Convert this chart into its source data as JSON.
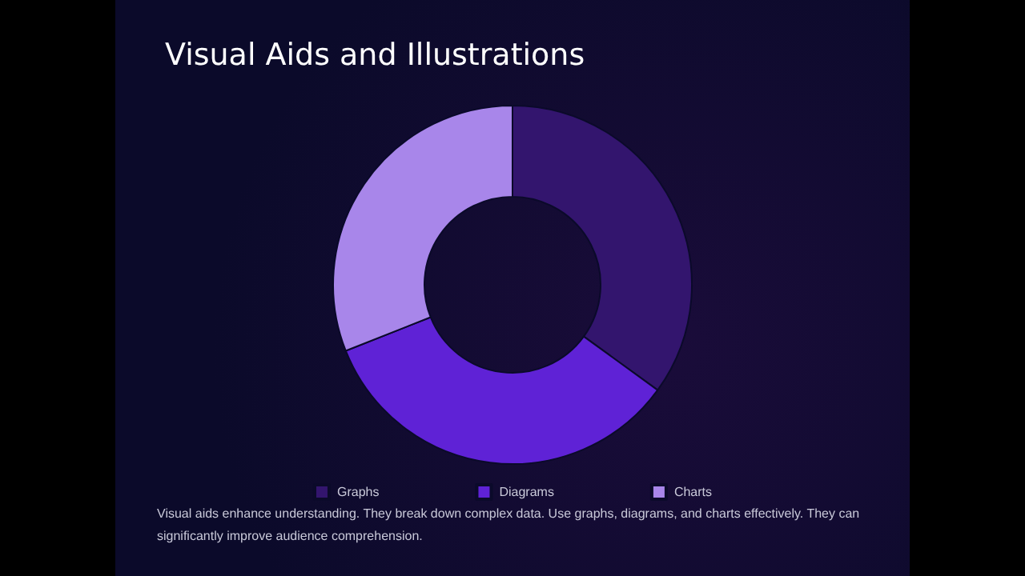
{
  "chart_data": {
    "type": "donut",
    "title": "Visual Aids and Illustrations",
    "categories": [
      "Graphs",
      "Diagrams",
      "Charts"
    ],
    "values": [
      35,
      34,
      31
    ],
    "colors": [
      "#33156e",
      "#5f22d6",
      "#a886ea"
    ],
    "legend": "bottom",
    "annotations": [
      "Visual aids enhance understanding. They break down complex data. Use graphs, diagrams, and charts effectively. They can significantly improve audience comprehension."
    ]
  }
}
